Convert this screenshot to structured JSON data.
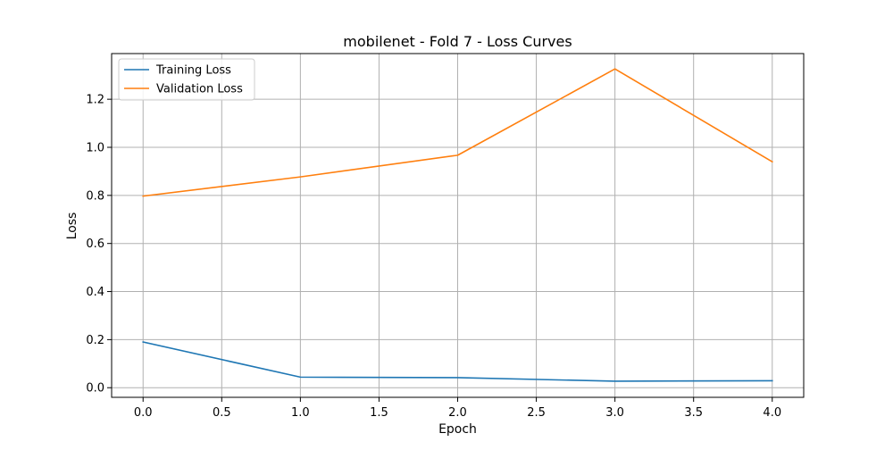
{
  "chart_data": {
    "type": "line",
    "title": "mobilenet - Fold 7 - Loss Curves",
    "xlabel": "Epoch",
    "ylabel": "Loss",
    "x": [
      0,
      1,
      2,
      3,
      4
    ],
    "xlim": [
      -0.2,
      4.2
    ],
    "ylim": [
      -0.04,
      1.39
    ],
    "xticks": [
      0.0,
      0.5,
      1.0,
      1.5,
      2.0,
      2.5,
      3.0,
      3.5,
      4.0
    ],
    "xtick_labels": [
      "0.0",
      "0.5",
      "1.0",
      "1.5",
      "2.0",
      "2.5",
      "3.0",
      "3.5",
      "4.0"
    ],
    "yticks": [
      0.0,
      0.2,
      0.4,
      0.6,
      0.8,
      1.0,
      1.2
    ],
    "ytick_labels": [
      "0.0",
      "0.2",
      "0.4",
      "0.6",
      "0.8",
      "1.0",
      "1.2"
    ],
    "grid": true,
    "legend_position": "top-left",
    "series": [
      {
        "name": "Training Loss",
        "color": "#1f77b4",
        "values": [
          0.19,
          0.044,
          0.042,
          0.027,
          0.029
        ]
      },
      {
        "name": "Validation Loss",
        "color": "#ff7f0e",
        "values": [
          0.797,
          0.877,
          0.967,
          1.326,
          0.94
        ]
      }
    ]
  }
}
